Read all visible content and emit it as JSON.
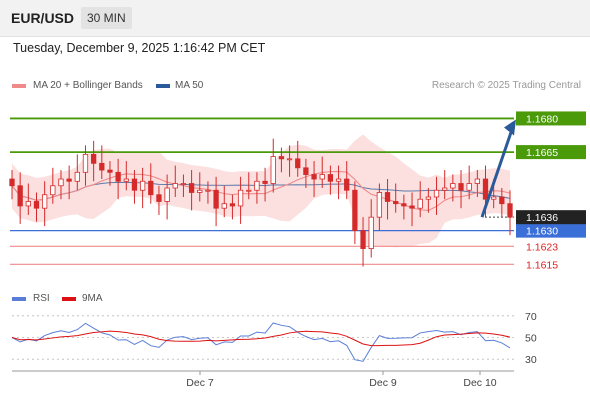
{
  "header": {
    "symbol": "EUR/USD",
    "timeframe": "30 MIN",
    "datetime": "Tuesday, December 9, 2025 1:16:42 PM CET"
  },
  "legend": {
    "ma20_label": "MA 20 + Bollinger Bands",
    "ma50_label": "MA 50",
    "credit": "Research © 2025 Trading Central",
    "rsi_label": "RSI",
    "rsi_ma_label": "9MA"
  },
  "colors": {
    "ma20": "#f08a8a",
    "ma50": "#2a5a9a",
    "bollinger_fill": "#fbd9d9",
    "green_level": "#4a9a0a",
    "blue_level": "#3a6fd8",
    "red_level": "#f08a8a",
    "candle": "#d42a2a",
    "arrow": "#2a5a9a",
    "rsi_line": "#5a7ed8",
    "rsi_ma": "#dd1111",
    "current_price_bg": "#222222"
  },
  "chart_data": {
    "type": "candlestick",
    "instrument": "EUR/USD",
    "interval": "30 MIN",
    "price_range": [
      1.1608,
      1.169
    ],
    "levels": [
      {
        "value": 1.168,
        "label": "1.1680",
        "kind": "resistance"
      },
      {
        "value": 1.1665,
        "label": "1.1665",
        "kind": "resistance"
      },
      {
        "value": 1.163,
        "label": "1.1630",
        "kind": "pivot"
      },
      {
        "value": 1.1623,
        "label": "1.1623",
        "kind": "support"
      },
      {
        "value": 1.1615,
        "label": "1.1615",
        "kind": "support"
      }
    ],
    "current_price": {
      "value": 1.1636,
      "label": "1.1636"
    },
    "target_arrow": {
      "from": 1.1636,
      "to": 1.168
    },
    "x_ticks": [
      "Dec 7",
      "Dec 9",
      "Dec 10"
    ],
    "rsi": {
      "range": [
        20,
        80
      ],
      "ticks": [
        "70",
        "50",
        "30"
      ]
    },
    "close_series": [
      1.165,
      1.1641,
      1.1643,
      1.164,
      1.1646,
      1.165,
      1.1653,
      1.1652,
      1.1656,
      1.1664,
      1.166,
      1.1657,
      1.1656,
      1.1652,
      1.1653,
      1.1648,
      1.1652,
      1.1646,
      1.1643,
      1.1649,
      1.1651,
      1.1651,
      1.1647,
      1.1648,
      1.1648,
      1.164,
      1.1642,
      1.1641,
      1.1648,
      1.1648,
      1.1652,
      1.1651,
      1.1663,
      1.1662,
      1.1662,
      1.1658,
      1.1655,
      1.1653,
      1.1655,
      1.1652,
      1.1653,
      1.1648,
      1.163,
      1.1622,
      1.1636,
      1.1647,
      1.1643,
      1.1642,
      1.1641,
      1.164,
      1.1644,
      1.1645,
      1.1648,
      1.1649,
      1.1651,
      1.1648,
      1.1651,
      1.1653,
      1.1644,
      1.1645,
      1.1642,
      1.1636
    ]
  }
}
